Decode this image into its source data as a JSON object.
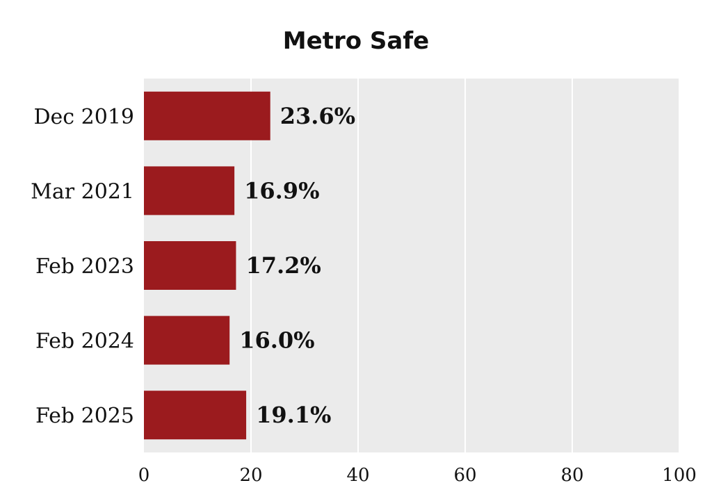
{
  "chart_data": {
    "type": "bar",
    "orientation": "horizontal",
    "title": "Metro Safe",
    "categories": [
      "Dec 2019",
      "Mar 2021",
      "Feb 2023",
      "Feb 2024",
      "Feb 2025"
    ],
    "values": [
      23.6,
      16.9,
      17.2,
      16.0,
      19.1
    ],
    "value_labels": [
      "23.6%",
      "16.9%",
      "17.2%",
      "16.0%",
      "19.1%"
    ],
    "xlim": [
      0,
      100
    ],
    "xticks": [
      "0",
      "20",
      "40",
      "60",
      "80",
      "100"
    ],
    "xlabel": "",
    "ylabel": "",
    "grid": "vertical",
    "colors": {
      "bar": "#9b1b1e",
      "plot_background": "#ebebeb",
      "gridline": "#ffffff"
    }
  }
}
